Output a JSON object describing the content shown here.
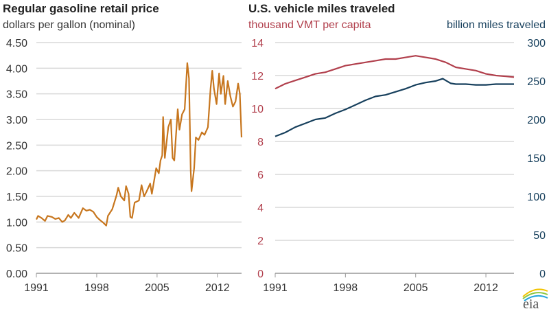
{
  "chart_data": [
    {
      "type": "line",
      "title": "Regular gasoline retail price",
      "subtitle": "dollars per gallon (nominal)",
      "x_ticks": [
        "1991",
        "1998",
        "2005",
        "2012"
      ],
      "y_ticks": [
        "0.00",
        "0.50",
        "1.00",
        "1.50",
        "2.00",
        "2.50",
        "3.00",
        "3.50",
        "4.00",
        "4.50"
      ],
      "ylim": [
        0,
        4.5
      ],
      "xlim": [
        1991,
        2014.8
      ],
      "grid": true,
      "colors": {
        "line": "#c7761e"
      },
      "series": [
        {
          "x": [
            1991.0,
            1991.2,
            1991.6,
            1992.0,
            1992.3,
            1992.8,
            1993.2,
            1993.6,
            1994.0,
            1994.3,
            1994.7,
            1995.0,
            1995.4,
            1995.9,
            1996.4,
            1996.8,
            1997.2,
            1997.6,
            1998.0,
            1998.3,
            1998.8,
            1999.1,
            1999.3,
            1999.8,
            2000.3,
            2000.5,
            2000.8,
            2001.2,
            2001.4,
            2001.7,
            2001.9,
            2002.1,
            2002.4,
            2002.9,
            2003.2,
            2003.5,
            2003.8,
            2004.2,
            2004.4,
            2004.7,
            2004.9,
            2005.2,
            2005.4,
            2005.6,
            2005.7,
            2005.9,
            2006.3,
            2006.6,
            2006.8,
            2007.0,
            2007.4,
            2007.6,
            2007.9,
            2008.2,
            2008.5,
            2008.7,
            2008.9,
            2009.0,
            2009.3,
            2009.5,
            2009.8,
            2010.2,
            2010.5,
            2010.9,
            2011.2,
            2011.4,
            2011.6,
            2011.9,
            2012.2,
            2012.4,
            2012.7,
            2012.9,
            2013.2,
            2013.5,
            2013.8,
            2014.1,
            2014.4,
            2014.6,
            2014.8
          ],
          "y": [
            1.05,
            1.12,
            1.08,
            1.02,
            1.12,
            1.1,
            1.06,
            1.08,
            1.0,
            1.03,
            1.14,
            1.08,
            1.18,
            1.08,
            1.27,
            1.22,
            1.24,
            1.2,
            1.1,
            1.05,
            0.98,
            0.93,
            1.12,
            1.25,
            1.52,
            1.67,
            1.5,
            1.42,
            1.7,
            1.55,
            1.1,
            1.08,
            1.38,
            1.42,
            1.72,
            1.5,
            1.6,
            1.75,
            1.55,
            1.85,
            2.05,
            1.95,
            2.2,
            2.3,
            3.05,
            2.25,
            2.85,
            3.0,
            2.25,
            2.2,
            3.2,
            2.8,
            3.1,
            3.2,
            4.1,
            3.8,
            2.0,
            1.6,
            2.05,
            2.65,
            2.6,
            2.75,
            2.7,
            2.85,
            3.6,
            3.95,
            3.6,
            3.3,
            3.9,
            3.5,
            3.85,
            3.3,
            3.75,
            3.45,
            3.25,
            3.35,
            3.7,
            3.5,
            2.65
          ]
        }
      ]
    },
    {
      "type": "line",
      "title": "U.S. vehicle miles traveled",
      "x_ticks": [
        "1991",
        "1998",
        "2005",
        "2012"
      ],
      "xlim": [
        1991,
        2014.8
      ],
      "grid": true,
      "left_axis": {
        "label": "thousand VMT per capita",
        "ticks": [
          "0",
          "2",
          "4",
          "6",
          "8",
          "10",
          "12",
          "14"
        ],
        "ylim": [
          0,
          14
        ],
        "color": "#b13f4c"
      },
      "right_axis": {
        "label": "billion miles traveled",
        "ticks": [
          "0",
          "50",
          "100",
          "150",
          "200",
          "250",
          "300"
        ],
        "ylim": [
          0,
          300
        ],
        "color": "#163f5c"
      },
      "series": [
        {
          "name": "thousand VMT per capita",
          "axis": "left",
          "color": "#b13f4c",
          "x": [
            1991,
            1992,
            1993,
            1994,
            1995,
            1996,
            1997,
            1998,
            1999,
            2000,
            2001,
            2002,
            2003,
            2004,
            2005,
            2006,
            2007,
            2008,
            2009,
            2010,
            2011,
            2012,
            2013,
            2014,
            2014.8
          ],
          "y": [
            11.2,
            11.5,
            11.7,
            11.9,
            12.1,
            12.2,
            12.4,
            12.6,
            12.7,
            12.8,
            12.9,
            13.0,
            13.0,
            13.1,
            13.2,
            13.1,
            13.0,
            12.8,
            12.5,
            12.4,
            12.3,
            12.1,
            12.0,
            11.95,
            11.9
          ]
        },
        {
          "name": "billion miles traveled",
          "axis": "right",
          "color": "#163f5c",
          "x": [
            1991,
            1992,
            1993,
            1994,
            1995,
            1996,
            1997,
            1998,
            1999,
            2000,
            2001,
            2002,
            2003,
            2004,
            2005,
            2006,
            2007,
            2007.7,
            2008.5,
            2009,
            2010,
            2011,
            2012,
            2013,
            2014,
            2014.8
          ],
          "y": [
            178,
            183,
            190,
            195,
            200,
            202,
            208,
            213,
            219,
            225,
            230,
            232,
            236,
            240,
            245,
            248,
            250,
            253,
            247,
            246,
            246,
            245,
            245,
            246,
            246,
            246
          ]
        }
      ]
    }
  ],
  "logo": "eia"
}
